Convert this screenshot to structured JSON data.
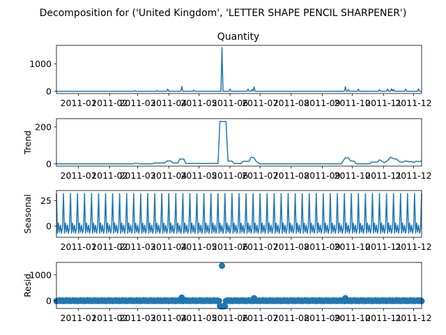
{
  "suptitle": "Decomposition for ('United Kingdom', 'LETTER SHAPE PENCIL SHARPENER')",
  "colors": {
    "line": "#1f77b4",
    "axis": "#000000",
    "background": "#ffffff"
  },
  "chart_data": [
    {
      "type": "line",
      "title": "Quantity",
      "ylabel": "",
      "yticks": [
        0,
        1000
      ],
      "ylim": [
        -80,
        1680
      ],
      "xlim": [
        "2010-12-10",
        "2011-12-09"
      ],
      "xticks": [
        "2011-01",
        "2011-02",
        "2011-03",
        "2011-04",
        "2011-05",
        "2011-06",
        "2011-07",
        "2011-08",
        "2011-09",
        "2011-10",
        "2011-11",
        "2011-12"
      ],
      "baseline": 4,
      "spikes": [
        {
          "x": "2011-02-26",
          "y": 24
        },
        {
          "x": "2011-03-20",
          "y": 30
        },
        {
          "x": "2011-03-31",
          "y": 80
        },
        {
          "x": "2011-04-14",
          "y": 180
        },
        {
          "x": "2011-04-26",
          "y": 40
        },
        {
          "x": "2011-05-24",
          "y": 1600
        },
        {
          "x": "2011-06-01",
          "y": 80
        },
        {
          "x": "2011-06-19",
          "y": 80
        },
        {
          "x": "2011-06-23",
          "y": 70
        },
        {
          "x": "2011-06-25",
          "y": 160
        },
        {
          "x": "2011-09-24",
          "y": 170
        },
        {
          "x": "2011-09-27",
          "y": 60
        },
        {
          "x": "2011-10-07",
          "y": 80
        },
        {
          "x": "2011-10-28",
          "y": 60
        },
        {
          "x": "2011-11-05",
          "y": 80
        },
        {
          "x": "2011-11-09",
          "y": 90
        },
        {
          "x": "2011-11-11",
          "y": 70
        },
        {
          "x": "2011-11-23",
          "y": 80
        },
        {
          "x": "2011-12-06",
          "y": 90
        }
      ]
    },
    {
      "type": "line",
      "title": "",
      "ylabel": "Trend",
      "yticks": [
        0,
        200
      ],
      "ylim": [
        -12,
        245
      ],
      "xlim": [
        "2010-12-10",
        "2011-12-09"
      ],
      "xticks": [
        "2011-01",
        "2011-02",
        "2011-03",
        "2011-04",
        "2011-05",
        "2011-06",
        "2011-07",
        "2011-08",
        "2011-09",
        "2011-10",
        "2011-11",
        "2011-12"
      ],
      "points": [
        [
          "2010-12-10",
          2
        ],
        [
          "2010-12-12",
          0
        ],
        [
          "2011-02-24",
          0
        ],
        [
          "2011-02-26",
          3
        ],
        [
          "2011-03-01",
          3
        ],
        [
          "2011-03-03",
          0
        ],
        [
          "2011-03-15",
          0
        ],
        [
          "2011-03-18",
          5
        ],
        [
          "2011-03-28",
          5
        ],
        [
          "2011-03-30",
          16
        ],
        [
          "2011-04-03",
          16
        ],
        [
          "2011-04-05",
          5
        ],
        [
          "2011-04-10",
          5
        ],
        [
          "2011-04-12",
          26
        ],
        [
          "2011-04-16",
          26
        ],
        [
          "2011-04-18",
          2
        ],
        [
          "2011-05-20",
          2
        ],
        [
          "2011-05-22",
          230
        ],
        [
          "2011-05-28",
          230
        ],
        [
          "2011-05-30",
          15
        ],
        [
          "2011-06-03",
          15
        ],
        [
          "2011-06-05",
          2
        ],
        [
          "2011-06-12",
          2
        ],
        [
          "2011-06-14",
          14
        ],
        [
          "2011-06-20",
          14
        ],
        [
          "2011-06-22",
          36
        ],
        [
          "2011-06-25",
          33
        ],
        [
          "2011-06-27",
          14
        ],
        [
          "2011-07-01",
          0
        ],
        [
          "2011-09-20",
          0
        ],
        [
          "2011-09-22",
          18
        ],
        [
          "2011-09-24",
          33
        ],
        [
          "2011-09-27",
          33
        ],
        [
          "2011-09-29",
          17
        ],
        [
          "2011-10-03",
          14
        ],
        [
          "2011-10-05",
          0
        ],
        [
          "2011-10-18",
          0
        ],
        [
          "2011-10-20",
          10
        ],
        [
          "2011-10-26",
          10
        ],
        [
          "2011-10-28",
          22
        ],
        [
          "2011-11-02",
          7
        ],
        [
          "2011-11-05",
          18
        ],
        [
          "2011-11-08",
          36
        ],
        [
          "2011-11-11",
          28
        ],
        [
          "2011-11-14",
          26
        ],
        [
          "2011-11-17",
          12
        ],
        [
          "2011-11-20",
          8
        ],
        [
          "2011-11-23",
          16
        ],
        [
          "2011-11-26",
          12
        ],
        [
          "2011-11-29",
          12
        ],
        [
          "2011-12-01",
          8
        ],
        [
          "2011-12-04",
          14
        ],
        [
          "2011-12-07",
          12
        ],
        [
          "2011-12-09",
          16
        ]
      ]
    },
    {
      "type": "line",
      "title": "",
      "ylabel": "Seasonal",
      "yticks": [
        0,
        25
      ],
      "ylim": [
        -11,
        35
      ],
      "xlim": [
        "2010-12-10",
        "2011-12-09"
      ],
      "xticks": [
        "2011-01",
        "2011-02",
        "2011-03",
        "2011-04",
        "2011-05",
        "2011-06",
        "2011-07",
        "2011-08",
        "2011-09",
        "2011-10",
        "2011-11",
        "2011-12"
      ],
      "period_days": 7,
      "weekly_pattern": [
        32,
        -7,
        3,
        -6,
        1,
        -7,
        -2
      ]
    },
    {
      "type": "scatter",
      "title": "",
      "ylabel": "Resid",
      "yticks": [
        0,
        1000
      ],
      "ylim": [
        -300,
        1480
      ],
      "xlim": [
        "2010-12-10",
        "2011-12-09"
      ],
      "xticks": [
        "2011-01",
        "2011-02",
        "2011-03",
        "2011-04",
        "2011-05",
        "2011-06",
        "2011-07",
        "2011-08",
        "2011-09",
        "2011-10",
        "2011-11",
        "2011-12"
      ],
      "baseline": 0,
      "outliers": [
        {
          "x": "2011-04-14",
          "y": 120
        },
        {
          "x": "2011-05-22",
          "y": -200
        },
        {
          "x": "2011-05-23",
          "y": -220
        },
        {
          "x": "2011-05-24",
          "y": 1350
        },
        {
          "x": "2011-05-25",
          "y": -220
        },
        {
          "x": "2011-05-26",
          "y": -200
        },
        {
          "x": "2011-05-27",
          "y": -210
        },
        {
          "x": "2011-06-25",
          "y": 100
        },
        {
          "x": "2011-09-24",
          "y": 100
        }
      ]
    }
  ]
}
